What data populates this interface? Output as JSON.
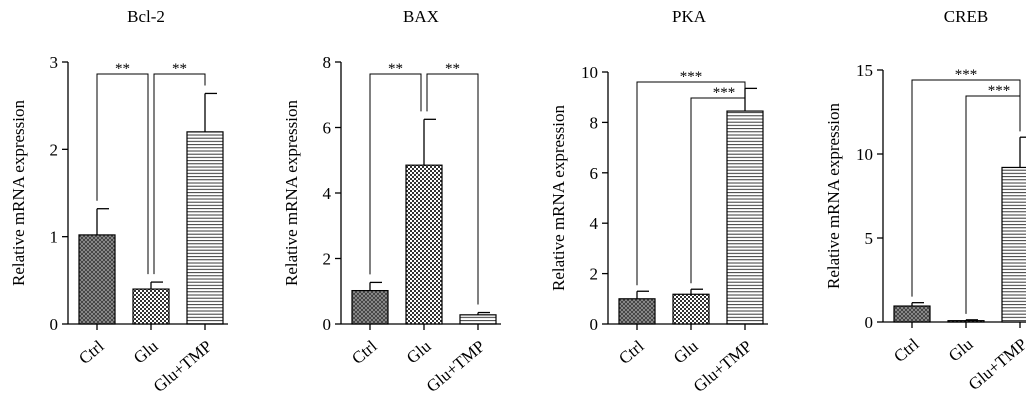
{
  "patterns": {
    "Ctrl": "crosshatch",
    "Glu": "checker",
    "Glu+TMP": "horizontal-lines"
  },
  "chart_data": [
    {
      "type": "bar",
      "title": "Bcl-2",
      "ylabel": "Relative mRNA expression",
      "categories": [
        "Ctrl",
        "Glu",
        "Glu+TMP"
      ],
      "values": [
        1.02,
        0.4,
        2.2
      ],
      "errors": [
        0.3,
        0.08,
        0.44
      ],
      "ylim": [
        0,
        3
      ],
      "yticks": [
        0,
        1,
        2,
        3
      ],
      "significance": [
        {
          "from": 0,
          "to": 1,
          "label": "**"
        },
        {
          "from": 1,
          "to": 2,
          "label": "**"
        }
      ]
    },
    {
      "type": "bar",
      "title": "BAX",
      "ylabel": "Relative mRNA expression",
      "categories": [
        "Ctrl",
        "Glu",
        "Glu+TMP"
      ],
      "values": [
        1.02,
        4.85,
        0.28
      ],
      "errors": [
        0.25,
        1.4,
        0.07
      ],
      "ylim": [
        0,
        8
      ],
      "yticks": [
        0,
        2,
        4,
        6,
        8
      ],
      "significance": [
        {
          "from": 0,
          "to": 1,
          "label": "**"
        },
        {
          "from": 1,
          "to": 2,
          "label": "**"
        }
      ]
    },
    {
      "type": "bar",
      "title": "PKA",
      "ylabel": "Relative mRNA expression",
      "categories": [
        "Ctrl",
        "Glu",
        "Glu+TMP"
      ],
      "values": [
        1.0,
        1.18,
        8.45
      ],
      "errors": [
        0.3,
        0.2,
        0.9
      ],
      "ylim": [
        0,
        10
      ],
      "yticks": [
        0,
        2,
        4,
        6,
        8,
        10
      ],
      "significance": [
        {
          "from": 0,
          "to": 2,
          "label": "***"
        },
        {
          "from": 1,
          "to": 2,
          "label": "***"
        }
      ]
    },
    {
      "type": "bar",
      "title": "CREB",
      "ylabel": "Relative mRNA expression",
      "categories": [
        "Ctrl",
        "Glu",
        "Glu+TMP"
      ],
      "values": [
        0.95,
        0.08,
        9.2
      ],
      "errors": [
        0.2,
        0.05,
        1.8
      ],
      "ylim": [
        0,
        15
      ],
      "yticks": [
        0,
        5,
        10,
        15
      ],
      "significance": [
        {
          "from": 0,
          "to": 2,
          "label": "***"
        },
        {
          "from": 1,
          "to": 2,
          "label": "***"
        }
      ]
    }
  ]
}
